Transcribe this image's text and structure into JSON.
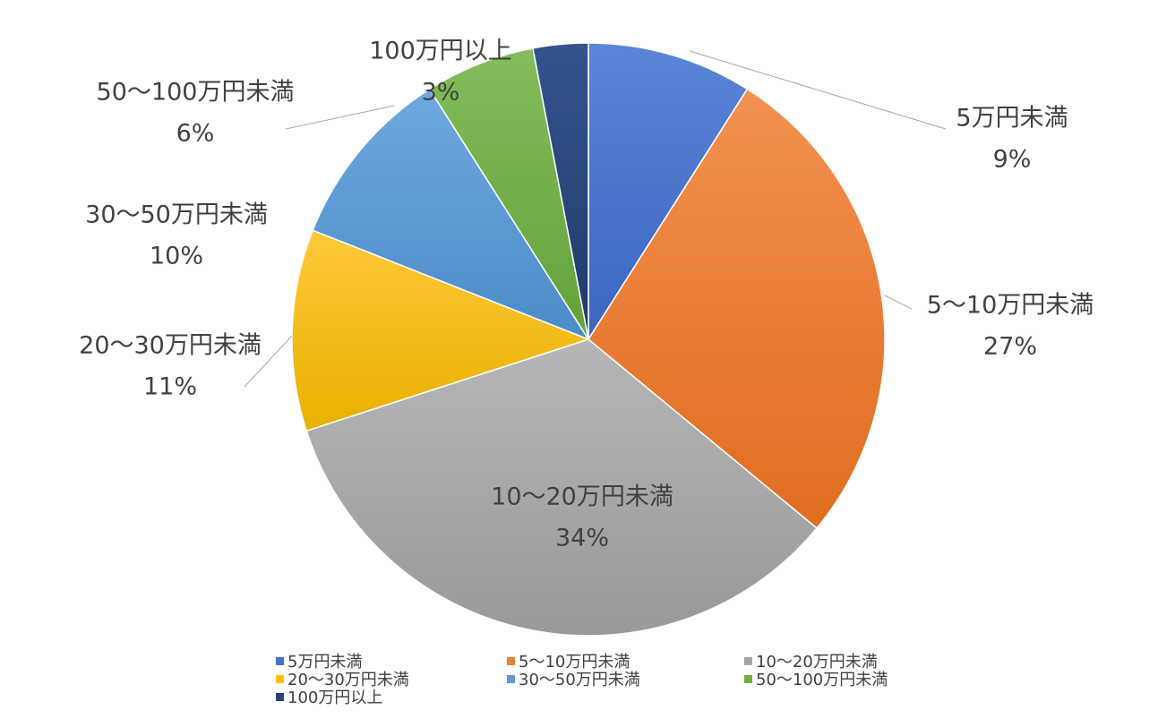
{
  "chart_data": {
    "type": "pie",
    "categories": [
      "5万円未満",
      "5～10万円未満",
      "10～20万円未満",
      "20～30万円未満",
      "30～50万円未満",
      "50～100万円未満",
      "100万円以上"
    ],
    "values": [
      9,
      27,
      34,
      11,
      10,
      6,
      3
    ],
    "value_labels": [
      "9%",
      "27%",
      "34%",
      "11%",
      "10%",
      "6%",
      "3%"
    ],
    "colors": [
      "#4472c4",
      "#ed7d31",
      "#a5a5a5",
      "#ffc000",
      "#5b9bd5",
      "#70ad47",
      "#264478"
    ],
    "start_angle_deg": 0,
    "direction": "clockwise",
    "legend_position": "bottom"
  }
}
